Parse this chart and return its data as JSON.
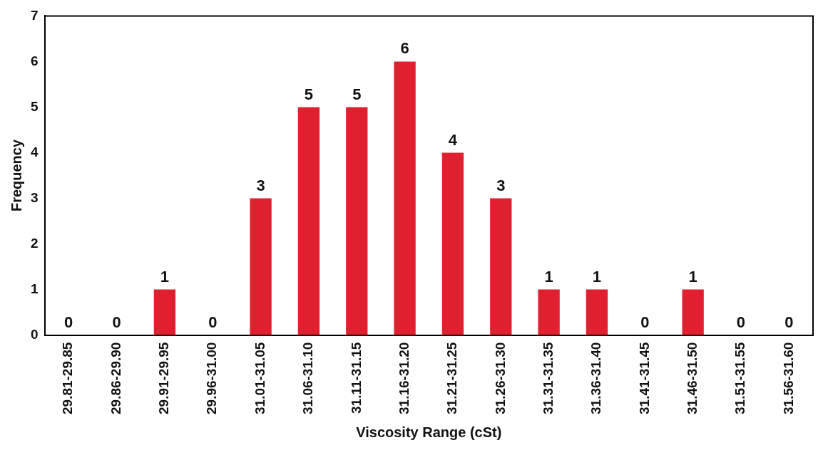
{
  "chart_data": {
    "type": "bar",
    "xlabel": "Viscosity Range (cSt)",
    "ylabel": "Frequency",
    "categories": [
      "29.81-29.85",
      "29.86-29.90",
      "29.91-29.95",
      "29.96-31.00",
      "31.01-31.05",
      "31.06-31.10",
      "31.11-31.15",
      "31.16-31.20",
      "31.21-31.25",
      "31.26-31.30",
      "31.31-31.35",
      "31.36-31.40",
      "31.41-31.45",
      "31.46-31.50",
      "31.51-31.55",
      "31.56-31.60"
    ],
    "values": [
      0,
      0,
      1,
      0,
      3,
      5,
      5,
      6,
      4,
      3,
      1,
      1,
      0,
      1,
      0,
      0
    ],
    "color": "#e0202e",
    "ylim": [
      0,
      7
    ],
    "yticks": [
      0,
      1,
      2,
      3,
      4,
      5,
      6,
      7
    ],
    "grid": false,
    "legend": false,
    "data_labels": true
  }
}
